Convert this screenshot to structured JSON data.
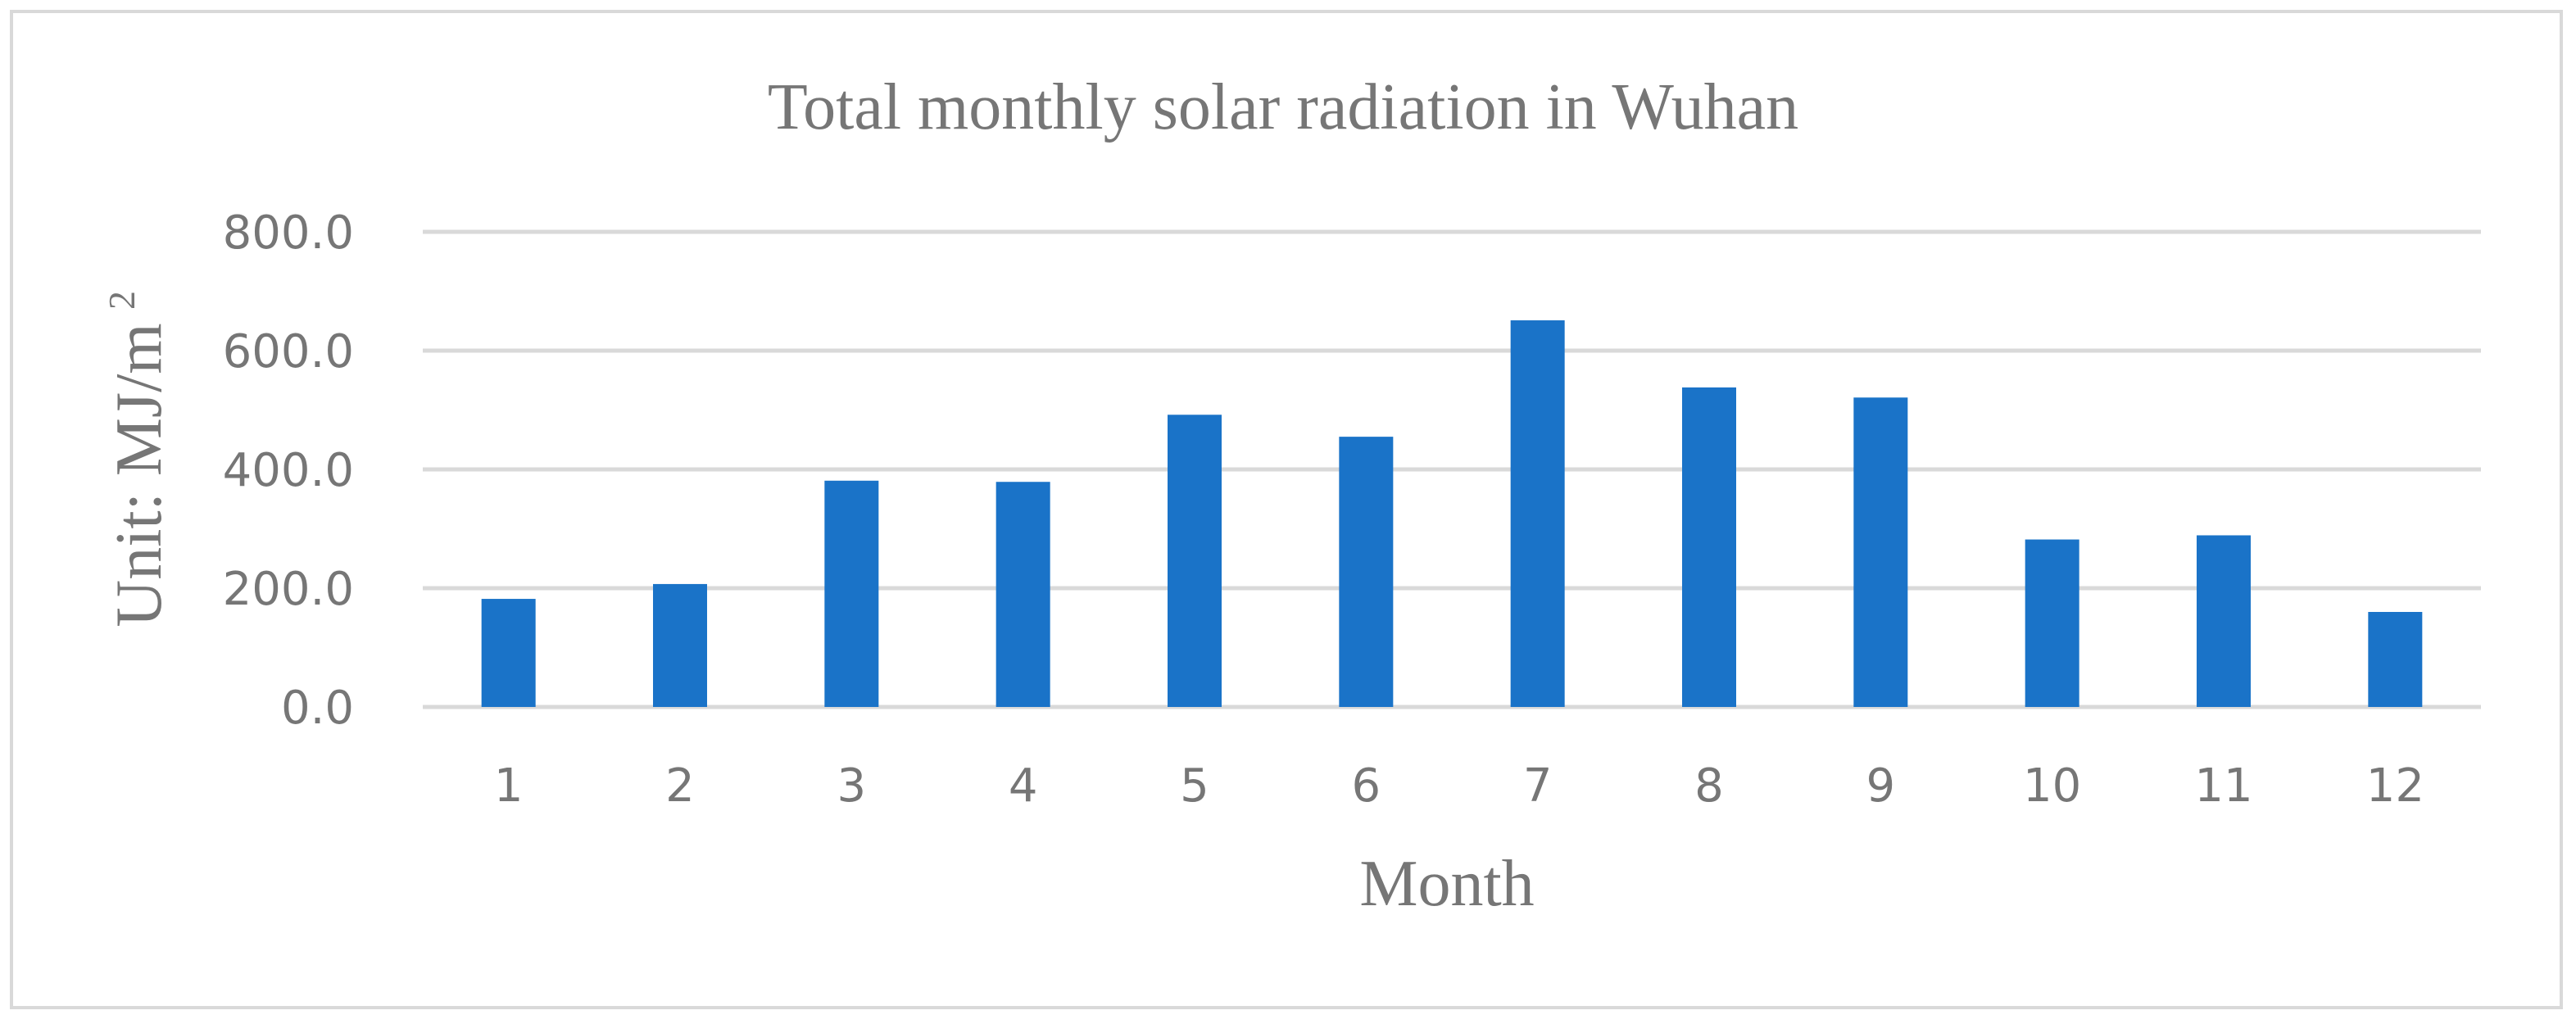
{
  "chart_data": {
    "type": "bar",
    "title": "Total monthly solar radiation in Wuhan",
    "xlabel": "Month",
    "ylabel": "Unit: MJ/m",
    "ylabel_superscript": "2",
    "categories": [
      "1",
      "2",
      "3",
      "4",
      "5",
      "6",
      "7",
      "8",
      "9",
      "10",
      "11",
      "12"
    ],
    "values": [
      182,
      207,
      381,
      379,
      492,
      455,
      651,
      538,
      521,
      282,
      289,
      160
    ],
    "ylim": [
      0,
      800
    ],
    "yticks": [
      "0.0",
      "200.0",
      "400.0",
      "600.0",
      "800.0"
    ],
    "grid": true,
    "legend": "none",
    "colors": {
      "bar": "#1a73c8",
      "grid": "#d9d9d9",
      "text": "#767676",
      "frame": "#d9d9d9"
    }
  }
}
